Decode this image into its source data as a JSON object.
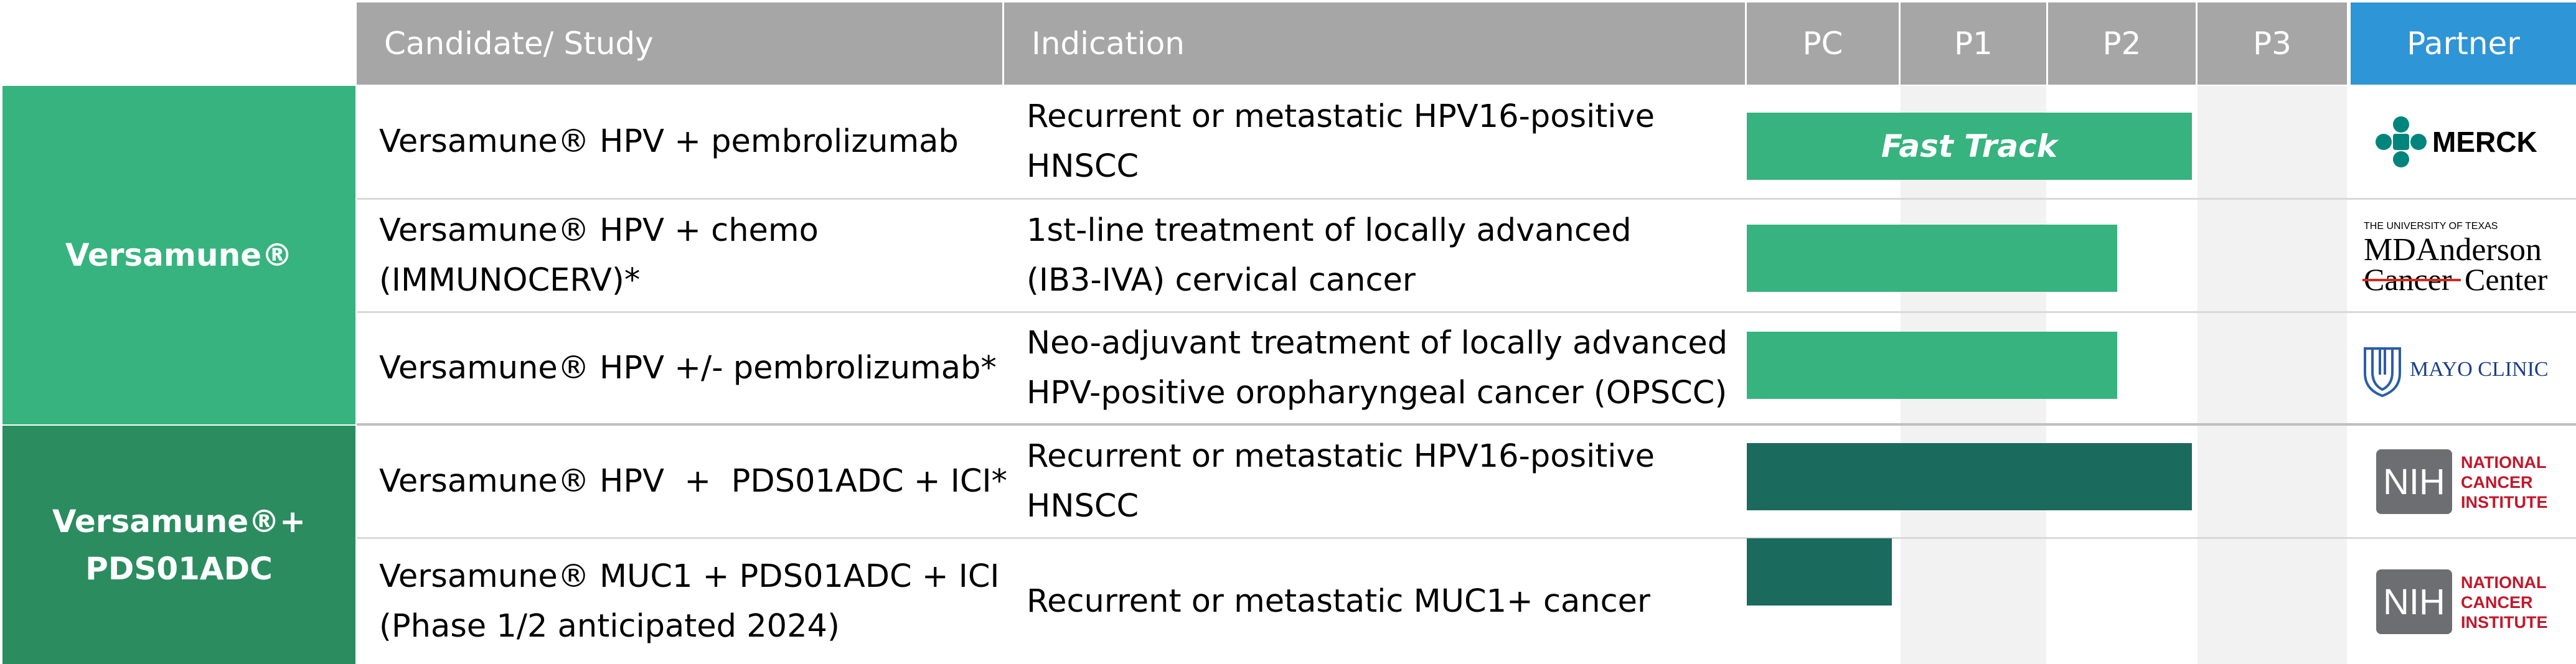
{
  "header": {
    "candidate": "Candidate/ Study",
    "indication": "Indication",
    "phases": [
      "PC",
      "P1",
      "P2",
      "P3"
    ],
    "partner": "Partner"
  },
  "groups": [
    {
      "label": "Versamune®"
    },
    {
      "label": "Versamune®+\nPDS01ADC"
    }
  ],
  "rows": [
    {
      "study": "Versamune® HPV + pembrolizumab",
      "indication": "Recurrent or metastatic HPV16-positive\nHNSCC",
      "bar_label": "Fast Track"
    },
    {
      "study": "Versamune® HPV + chemo\n(IMMUNOCERV)*",
      "indication": "1st-line treatment of locally advanced\n(IB3-IVA) cervical cancer",
      "bar_label": ""
    },
    {
      "study": "Versamune® HPV +/- pembrolizumab*",
      "indication": "Neo-adjuvant treatment of locally advanced\nHPV-positive oropharyngeal cancer (OPSCC)",
      "bar_label": ""
    },
    {
      "study": "Versamune® HPV  +  PDS01ADC + ICI*",
      "indication": "Recurrent or metastatic HPV16-positive\nHNSCC",
      "bar_label": ""
    },
    {
      "study": "Versamune® MUC1 + PDS01ADC + ICI\n(Phase 1/2 anticipated 2024)",
      "indication": "Recurrent or metastatic MUC1+ cancer",
      "bar_label": ""
    }
  ],
  "logos": {
    "merck": "MERCK",
    "mda_small": "THE UNIVERSITY OF TEXAS",
    "mda_line1": "MDAnderson",
    "mda_line2a": "Cancer",
    "mda_line2b": "Center",
    "mayo": "MAYO CLINIC",
    "nih_box": "NIH",
    "nih_text1": "NATIONAL",
    "nih_text2": "CANCER",
    "nih_text3": "INSTITUTE"
  },
  "colors": {
    "header_gray": "#a6a6a6",
    "partner_blue": "#2e95d6",
    "group1_green": "#36b37e",
    "group2_green": "#2a8c5f",
    "bar_light": "#36b37e",
    "bar_dark": "#1a6b5e"
  },
  "chart_data": {
    "type": "bar",
    "orientation": "horizontal",
    "categories": [
      "Versamune® HPV + pembrolizumab",
      "Versamune® HPV + chemo (IMMUNOCERV)*",
      "Versamune® HPV +/- pembrolizumab*",
      "Versamune® HPV + PDS01ADC + ICI*",
      "Versamune® MUC1 + PDS01ADC + ICI (Phase 1/2 anticipated 2024)"
    ],
    "x_axis_stages": [
      "PC",
      "P1",
      "P2",
      "P3"
    ],
    "progress_end_stage_units": [
      3.0,
      2.5,
      2.5,
      3.0,
      1.0
    ],
    "bar_colors": [
      "#36b37e",
      "#36b37e",
      "#36b37e",
      "#1a6b5e",
      "#1a6b5e"
    ],
    "xlim": [
      0,
      4
    ],
    "title": "",
    "xlabel": "",
    "ylabel": ""
  }
}
